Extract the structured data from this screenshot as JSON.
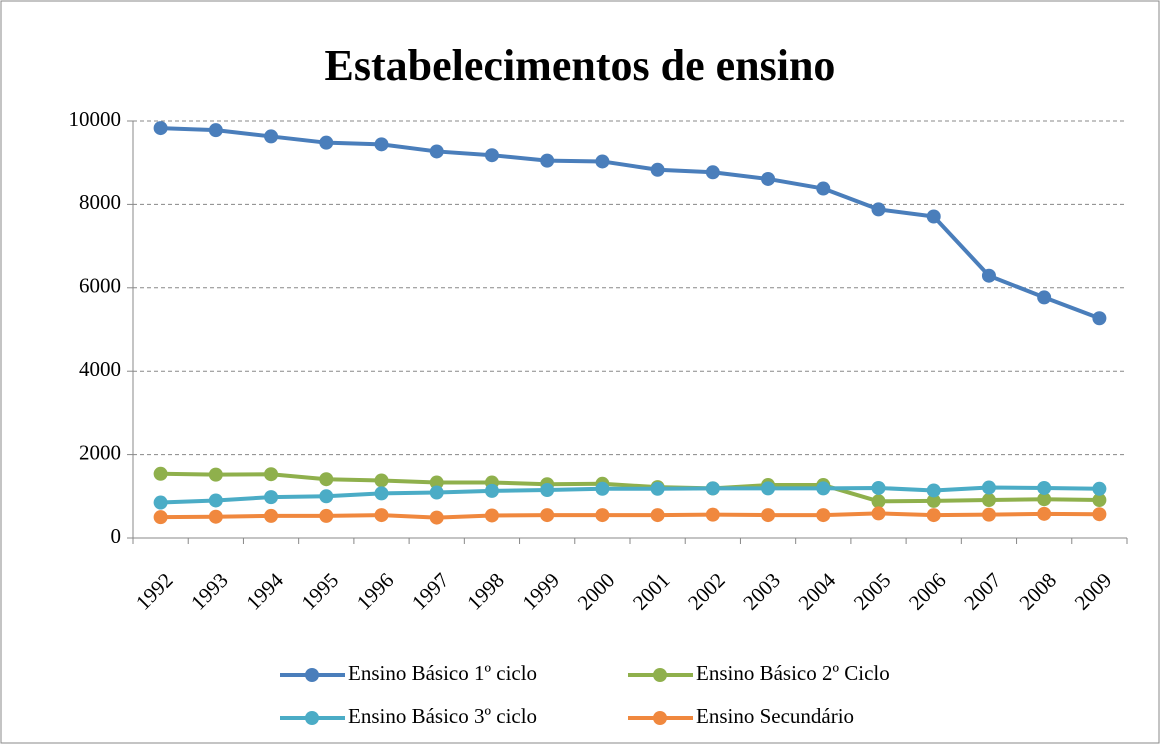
{
  "chart_data": {
    "type": "line",
    "title": "Estabelecimentos de ensino",
    "categories": [
      "1992",
      "1993",
      "1994",
      "1995",
      "1996",
      "1997",
      "1998",
      "1999",
      "2000",
      "2001",
      "2002",
      "2003",
      "2004",
      "2005",
      "2006",
      "2007",
      "2008",
      "2009"
    ],
    "series": [
      {
        "name": "Ensino Básico 1º ciclo",
        "color": "#4a7ebb",
        "values": [
          9830,
          9780,
          9630,
          9480,
          9440,
          9270,
          9180,
          9050,
          9030,
          8830,
          8770,
          8610,
          8380,
          7880,
          7710,
          6290,
          5770,
          5270
        ]
      },
      {
        "name": "Ensino Básico 2º Ciclo",
        "color": "#8fb04c",
        "values": [
          1540,
          1520,
          1530,
          1410,
          1380,
          1330,
          1330,
          1290,
          1300,
          1220,
          1190,
          1270,
          1270,
          880,
          890,
          910,
          930,
          910
        ]
      },
      {
        "name": "Ensino Básico 3º ciclo",
        "color": "#4bacc6",
        "values": [
          850,
          900,
          980,
          1000,
          1070,
          1090,
          1130,
          1150,
          1180,
          1180,
          1190,
          1190,
          1190,
          1200,
          1140,
          1210,
          1200,
          1180
        ]
      },
      {
        "name": "Ensino Secundário",
        "color": "#f0883e",
        "values": [
          500,
          510,
          530,
          530,
          550,
          490,
          540,
          550,
          550,
          550,
          560,
          550,
          550,
          590,
          550,
          560,
          580,
          570
        ]
      }
    ],
    "ylim": [
      0,
      10000
    ],
    "yticks": [
      0,
      2000,
      4000,
      6000,
      8000,
      10000
    ],
    "grid": true
  }
}
